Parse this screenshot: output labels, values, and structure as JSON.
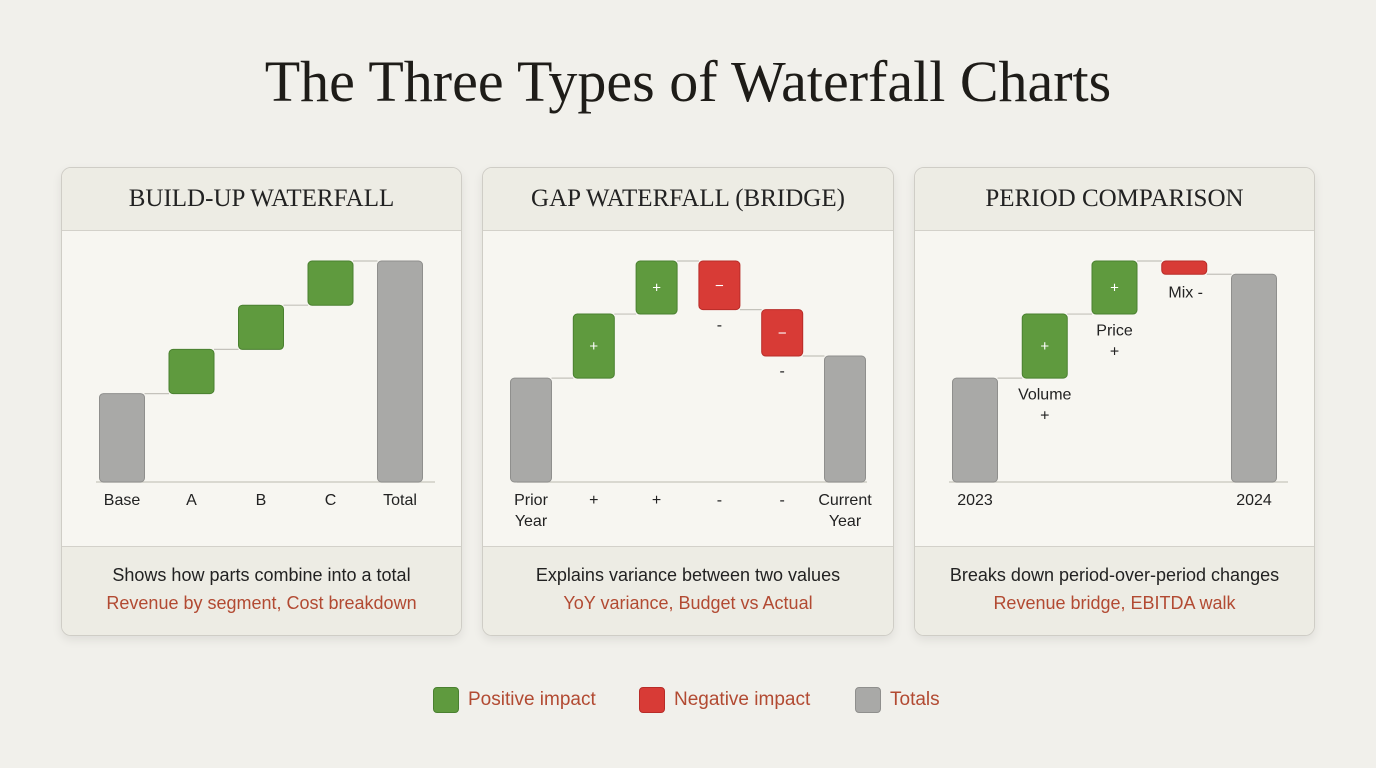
{
  "title": "The Three Types of Waterfall Charts",
  "chart_data": [
    {
      "type": "waterfall",
      "title": "BUILD-UP WATERFALL",
      "categories": [
        "Base",
        "A",
        "B",
        "C",
        "Total"
      ],
      "values": [
        40,
        20,
        20,
        20,
        100
      ],
      "kinds": [
        "total",
        "delta",
        "delta",
        "delta",
        "total"
      ],
      "ylim": [
        0,
        100
      ],
      "description": "Shows how parts combine into a total",
      "examples": "Revenue by segment, Cost breakdown"
    },
    {
      "type": "waterfall",
      "title": "GAP WATERFALL (BRIDGE)",
      "categories": [
        "Prior Year",
        "+",
        "+",
        "-",
        "-",
        "Current Year"
      ],
      "values": [
        47,
        29,
        24,
        -22,
        -21,
        57
      ],
      "kinds": [
        "total",
        "delta",
        "delta",
        "delta",
        "delta",
        "total"
      ],
      "bar_text": [
        null,
        "+",
        "+",
        "−",
        "−",
        null
      ],
      "annotation_signs": [
        null,
        null,
        null,
        "-",
        "-",
        null
      ],
      "ylim": [
        0,
        100
      ],
      "description": "Explains variance between two values",
      "examples": "YoY variance, Budget vs Actual"
    },
    {
      "type": "waterfall",
      "title": "PERIOD COMPARISON",
      "categories": [
        "2023",
        null,
        null,
        null,
        "2024"
      ],
      "values": [
        47,
        29,
        24,
        -6,
        94
      ],
      "kinds": [
        "total",
        "delta",
        "delta",
        "delta",
        "total"
      ],
      "bar_text": [
        null,
        "+",
        "+",
        null,
        null
      ],
      "annotations": [
        null,
        "Volume",
        "Price",
        "Mix",
        null
      ],
      "annotation_signs": [
        null,
        "+",
        "+",
        "-",
        null
      ],
      "ylim": [
        0,
        100
      ],
      "description": "Breaks down period-over-period changes",
      "examples": "Revenue bridge, EBITDA walk"
    }
  ],
  "colors": {
    "positive": "#5f9a3e",
    "negative": "#d83b36",
    "total": "#a9a9a7"
  },
  "legend": [
    {
      "label": "Positive impact",
      "key": "positive"
    },
    {
      "label": "Negative impact",
      "key": "negative"
    },
    {
      "label": "Totals",
      "key": "total"
    }
  ]
}
